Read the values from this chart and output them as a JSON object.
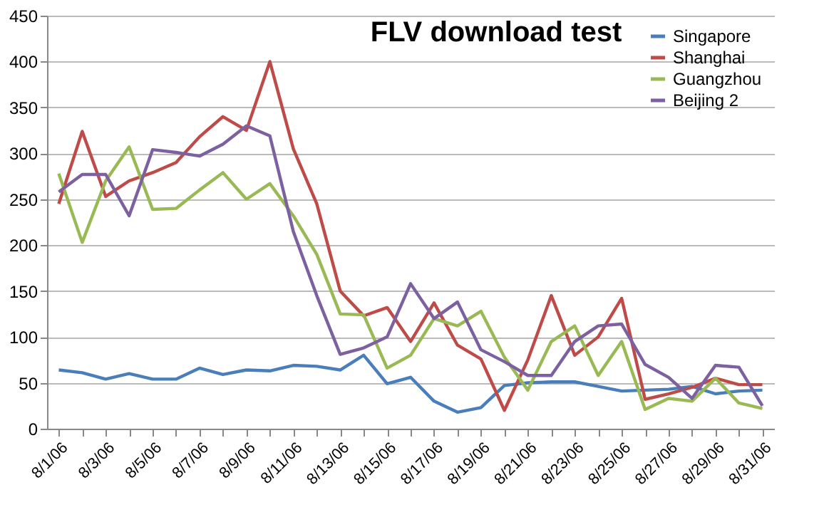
{
  "chart_data": {
    "type": "line",
    "title": "FLV download test",
    "categories": [
      "8/1/06",
      null,
      "8/3/06",
      null,
      "8/5/06",
      null,
      "8/7/06",
      null,
      "8/9/06",
      null,
      "8/11/06",
      null,
      "8/13/06",
      null,
      "8/15/06",
      null,
      "8/17/06",
      null,
      "8/19/06",
      null,
      "8/21/06",
      null,
      "8/23/06",
      null,
      "8/25/06",
      null,
      "8/27/06",
      null,
      "8/29/06",
      null,
      "8/31/06"
    ],
    "series": [
      {
        "name": "Singapore",
        "color": "#4a7ebb",
        "values": [
          64,
          61,
          54,
          60,
          54,
          54,
          66,
          59,
          64,
          63,
          69,
          68,
          64,
          80,
          49,
          56,
          30,
          18,
          23,
          47,
          50,
          51,
          51,
          46,
          41,
          42,
          43,
          46,
          38,
          41,
          42
        ]
      },
      {
        "name": "Shanghai",
        "color": "#be4b48",
        "values": [
          245,
          324,
          253,
          270,
          279,
          290,
          318,
          340,
          325,
          400,
          305,
          245,
          150,
          123,
          132,
          95,
          137,
          91,
          76,
          20,
          75,
          145,
          80,
          100,
          142,
          32,
          38,
          45,
          55,
          48,
          48
        ]
      },
      {
        "name": "Guangzhou",
        "color": "#98b954",
        "values": [
          278,
          203,
          270,
          307,
          239,
          240,
          260,
          279,
          250,
          267,
          232,
          190,
          125,
          124,
          66,
          80,
          120,
          112,
          128,
          78,
          42,
          95,
          112,
          58,
          95,
          21,
          33,
          30,
          55,
          28,
          22
        ]
      },
      {
        "name": "Beijing 2",
        "color": "#7d60a0",
        "values": [
          258,
          277,
          277,
          232,
          304,
          301,
          297,
          310,
          330,
          319,
          215,
          145,
          81,
          88,
          100,
          158,
          120,
          138,
          86,
          73,
          58,
          58,
          95,
          112,
          114,
          70,
          56,
          33,
          69,
          67,
          25
        ]
      }
    ],
    "ylim": [
      0,
      450
    ],
    "yticks": [
      0,
      50,
      100,
      150,
      200,
      250,
      300,
      350,
      400,
      450
    ],
    "grid": "y",
    "legend": "top right"
  }
}
